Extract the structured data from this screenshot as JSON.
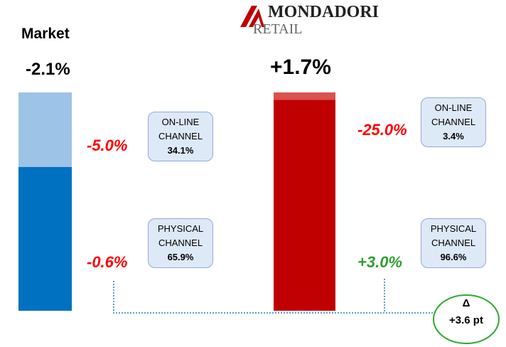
{
  "logo": {
    "name": "MONDADORI",
    "sub": "RETAIL"
  },
  "chart_data": [
    {
      "type": "stacked-bar",
      "title": "Market",
      "total_label": "-2.1%",
      "ylim": [
        0,
        100
      ],
      "series": [
        {
          "name": "ON-LINE CHANNEL",
          "color": "#9dc3e6",
          "values": [
            34.1
          ],
          "value_labels": [
            "34.1%"
          ],
          "growth_label": "-5.0%",
          "growth_color": "#ff0000"
        },
        {
          "name": "PHYSICAL CHANNEL",
          "color": "#0070c0",
          "values": [
            65.9
          ],
          "value_labels": [
            "65.9%"
          ],
          "growth_label": "-0.6%",
          "growth_color": "#ff0000"
        }
      ]
    },
    {
      "type": "stacked-bar",
      "total_label": "+1.7%",
      "ylim": [
        0,
        100
      ],
      "series": [
        {
          "name": "ON-LINE CHANNEL",
          "color": "#d9534f",
          "values": [
            3.4
          ],
          "value_labels": [
            "3.4%"
          ],
          "growth_label": "-25.0%",
          "growth_color": "#ff0000"
        },
        {
          "name": "PHYSICAL CHANNEL",
          "color": "#c00000",
          "values": [
            96.6
          ],
          "value_labels": [
            "96.6%"
          ],
          "growth_label": "+3.0%",
          "growth_color": "#2e9e2e"
        }
      ]
    }
  ],
  "delta": {
    "symbol": "Δ",
    "label": "+3.6 pt"
  }
}
